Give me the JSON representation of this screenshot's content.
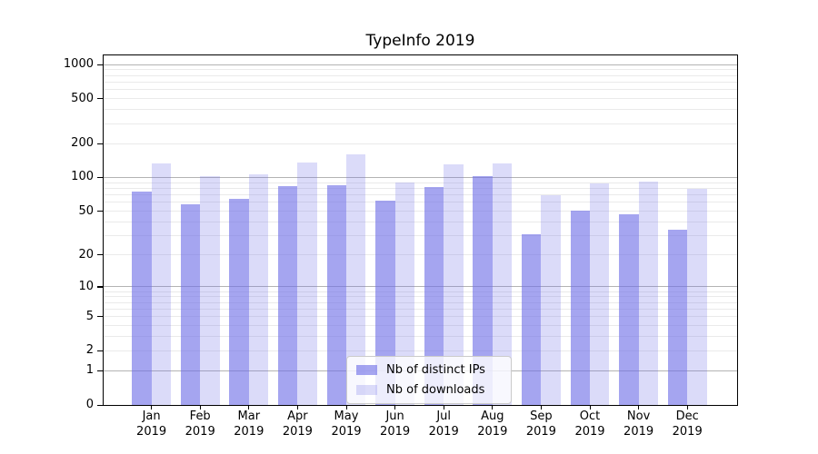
{
  "chart_data": {
    "type": "bar",
    "title": "TypeInfo 2019",
    "year_label": "2019",
    "categories": [
      "Jan",
      "Feb",
      "Mar",
      "Apr",
      "May",
      "Jun",
      "Jul",
      "Aug",
      "Sep",
      "Oct",
      "Nov",
      "Dec"
    ],
    "series": [
      {
        "name": "Nb of distinct IPs",
        "color": "rgba(110,110,230,0.62)",
        "values": [
          75,
          58,
          64,
          84,
          85,
          62,
          82,
          103,
          31,
          51,
          47,
          34
        ]
      },
      {
        "name": "Nb of downloads",
        "color": "rgba(110,110,230,0.25)",
        "values": [
          133,
          102,
          106,
          135,
          162,
          90,
          132,
          133,
          70,
          88,
          92,
          79
        ]
      }
    ],
    "y_axis": {
      "scale": "log1p",
      "ticks": [
        1000,
        500,
        200,
        100,
        50,
        20,
        10,
        5,
        2,
        1,
        0
      ],
      "max_value": 1000
    },
    "grid": {
      "major_values": [
        1,
        10,
        100,
        1000
      ],
      "major_color": "#b3b3b3",
      "minor_color": "#eaeaea"
    },
    "legend": {
      "position": "lower center"
    },
    "colors": {
      "spine": "#000000",
      "background": "#ffffff",
      "text": "#000000"
    }
  }
}
